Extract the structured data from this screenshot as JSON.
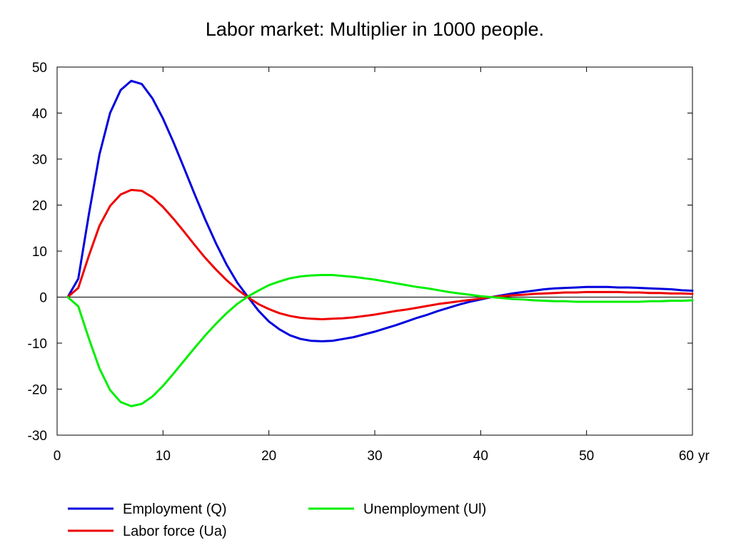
{
  "chart_data": {
    "type": "line",
    "title": "Labor market: Multiplier in 1000 people.",
    "x_unit_label": "yr",
    "xlim": [
      0,
      60
    ],
    "ylim": [
      -30,
      50
    ],
    "x_ticks": [
      0,
      10,
      20,
      30,
      40,
      50,
      60
    ],
    "y_ticks": [
      50,
      40,
      30,
      20,
      10,
      0,
      -10,
      -20,
      -30
    ],
    "grid": false,
    "zero_line": true,
    "legend_position": "bottom",
    "x": [
      1,
      2,
      3,
      4,
      5,
      6,
      7,
      8,
      9,
      10,
      11,
      12,
      13,
      14,
      15,
      16,
      17,
      18,
      19,
      20,
      21,
      22,
      23,
      24,
      25,
      26,
      27,
      28,
      29,
      30,
      31,
      32,
      33,
      34,
      35,
      36,
      37,
      38,
      39,
      40,
      41,
      42,
      43,
      44,
      45,
      46,
      47,
      48,
      49,
      50,
      51,
      52,
      53,
      54,
      55,
      56,
      57,
      58,
      59,
      60
    ],
    "series": [
      {
        "name": "Employment (Q)",
        "color": "#0000dd",
        "values": [
          0,
          4,
          18,
          31,
          40,
          45,
          47,
          46.3,
          43.2,
          38.8,
          33.6,
          28,
          22.3,
          16.8,
          11.7,
          7.1,
          3.2,
          0.1,
          -2.9,
          -5.3,
          -7,
          -8.3,
          -9.1,
          -9.5,
          -9.6,
          -9.5,
          -9.1,
          -8.7,
          -8.1,
          -7.5,
          -6.8,
          -6.1,
          -5.3,
          -4.5,
          -3.8,
          -3,
          -2.3,
          -1.6,
          -1,
          -0.5,
          0,
          0.4,
          0.8,
          1.1,
          1.4,
          1.7,
          1.9,
          2,
          2.1,
          2.2,
          2.2,
          2.2,
          2.1,
          2.1,
          2,
          1.9,
          1.8,
          1.7,
          1.5,
          1.4
        ]
      },
      {
        "name": "Labor force (Ua)",
        "color": "#ee0000",
        "values": [
          0,
          2,
          9,
          15.5,
          19.8,
          22.3,
          23.3,
          23.1,
          21.7,
          19.6,
          17,
          14.2,
          11.3,
          8.5,
          6,
          3.7,
          1.7,
          0,
          -1.5,
          -2.6,
          -3.5,
          -4.1,
          -4.5,
          -4.7,
          -4.8,
          -4.7,
          -4.6,
          -4.4,
          -4.1,
          -3.8,
          -3.4,
          -3,
          -2.7,
          -2.3,
          -1.9,
          -1.5,
          -1.2,
          -0.9,
          -0.6,
          -0.3,
          0,
          0.2,
          0.4,
          0.5,
          0.7,
          0.8,
          0.9,
          1,
          1,
          1.1,
          1.1,
          1.1,
          1.1,
          1,
          1,
          0.9,
          0.9,
          0.8,
          0.8,
          0.7
        ]
      },
      {
        "name": "Unemployment (Ul)",
        "color": "#00ee00",
        "values": [
          0,
          -2,
          -9,
          -15.5,
          -20.2,
          -22.8,
          -23.7,
          -23.2,
          -21.6,
          -19.3,
          -16.6,
          -13.8,
          -11,
          -8.3,
          -5.8,
          -3.5,
          -1.5,
          0.1,
          1.4,
          2.6,
          3.4,
          4.1,
          4.5,
          4.7,
          4.8,
          4.8,
          4.6,
          4.4,
          4.1,
          3.8,
          3.4,
          3,
          2.6,
          2.2,
          1.9,
          1.5,
          1.1,
          0.8,
          0.5,
          0.2,
          0,
          -0.2,
          -0.4,
          -0.5,
          -0.7,
          -0.8,
          -0.9,
          -0.9,
          -1,
          -1,
          -1,
          -1,
          -1,
          -1,
          -1,
          -0.9,
          -0.9,
          -0.8,
          -0.8,
          -0.7
        ]
      }
    ]
  }
}
